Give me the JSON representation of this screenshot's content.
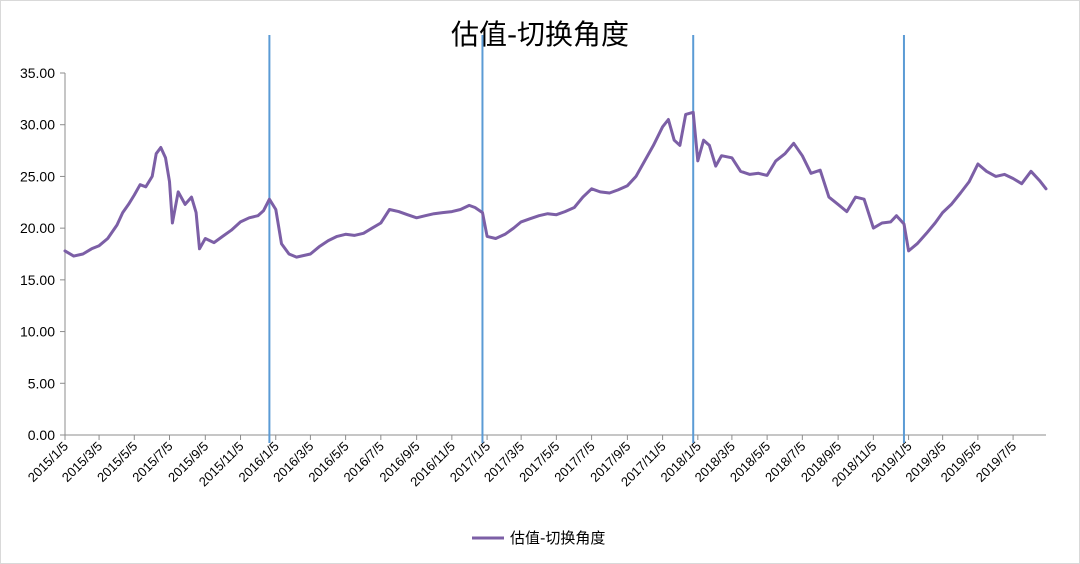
{
  "chart_data": {
    "type": "line",
    "title": "估值-切换角度",
    "xlabel": "",
    "ylabel": "",
    "ylim": [
      0,
      35
    ],
    "y_ticks": [
      "0.00",
      "5.00",
      "10.00",
      "15.00",
      "20.00",
      "25.00",
      "30.00",
      "35.00"
    ],
    "x_tick_labels": [
      "2015/1/5",
      "2015/3/5",
      "2015/5/5",
      "2015/7/5",
      "2015/9/5",
      "2015/11/5",
      "2016/1/5",
      "2016/3/5",
      "2016/5/5",
      "2016/7/5",
      "2016/9/5",
      "2016/11/5",
      "2017/1/5",
      "2017/3/5",
      "2017/5/5",
      "2017/7/5",
      "2017/9/5",
      "2017/11/5",
      "2018/1/5",
      "2018/3/5",
      "2018/5/5",
      "2018/7/5",
      "2018/9/5",
      "2018/11/5",
      "2019/1/5",
      "2019/3/5",
      "2019/5/5",
      "2019/7/5"
    ],
    "x_range": [
      "2015/1/5",
      "2019/8/31"
    ],
    "grid": false,
    "legend_position": "bottom",
    "series_color": "#7c5fa6",
    "vline_color": "#5b9bd5",
    "vertical_lines": [
      "2015/12/25",
      "2016/12/28",
      "2017/12/28",
      "2018/12/28"
    ],
    "series": [
      {
        "name": "估值-切换角度",
        "x": [
          "2015/1/5",
          "2015/1/20",
          "2015/2/5",
          "2015/2/20",
          "2015/3/5",
          "2015/3/20",
          "2015/4/5",
          "2015/4/15",
          "2015/4/25",
          "2015/5/5",
          "2015/5/15",
          "2015/5/25",
          "2015/6/5",
          "2015/6/12",
          "2015/6/20",
          "2015/6/28",
          "2015/7/5",
          "2015/7/10",
          "2015/7/20",
          "2015/8/1",
          "2015/8/12",
          "2015/8/20",
          "2015/8/26",
          "2015/9/5",
          "2015/9/20",
          "2015/10/5",
          "2015/10/20",
          "2015/11/5",
          "2015/11/20",
          "2015/12/5",
          "2015/12/15",
          "2015/12/25",
          "2016/1/5",
          "2016/1/15",
          "2016/1/28",
          "2016/2/10",
          "2016/3/5",
          "2016/3/20",
          "2016/4/5",
          "2016/4/20",
          "2016/5/5",
          "2016/5/20",
          "2016/6/5",
          "2016/6/20",
          "2016/7/5",
          "2016/7/20",
          "2016/8/5",
          "2016/8/20",
          "2016/9/5",
          "2016/9/20",
          "2016/10/5",
          "2016/10/20",
          "2016/11/5",
          "2016/11/20",
          "2016/12/5",
          "2016/12/15",
          "2016/12/28",
          "2017/1/5",
          "2017/1/20",
          "2017/2/5",
          "2017/2/20",
          "2017/3/5",
          "2017/3/20",
          "2017/4/5",
          "2017/4/20",
          "2017/5/5",
          "2017/5/20",
          "2017/6/5",
          "2017/6/20",
          "2017/7/5",
          "2017/7/20",
          "2017/8/5",
          "2017/8/20",
          "2017/9/5",
          "2017/9/20",
          "2017/10/5",
          "2017/10/20",
          "2017/11/5",
          "2017/11/15",
          "2017/11/25",
          "2017/12/5",
          "2017/12/15",
          "2017/12/28",
          "2018/1/5",
          "2018/1/15",
          "2018/1/25",
          "2018/2/5",
          "2018/2/15",
          "2018/3/5",
          "2018/3/20",
          "2018/4/5",
          "2018/4/20",
          "2018/5/5",
          "2018/5/20",
          "2018/6/5",
          "2018/6/20",
          "2018/7/5",
          "2018/7/20",
          "2018/8/5",
          "2018/8/20",
          "2018/9/5",
          "2018/9/20",
          "2018/10/5",
          "2018/10/20",
          "2018/11/5",
          "2018/11/20",
          "2018/12/5",
          "2018/12/15",
          "2018/12/28",
          "2019/1/5",
          "2019/1/20",
          "2019/2/5",
          "2019/2/20",
          "2019/3/5",
          "2019/3/20",
          "2019/4/5",
          "2019/4/20",
          "2019/5/5",
          "2019/5/20",
          "2019/6/5",
          "2019/6/20",
          "2019/7/5",
          "2019/7/20",
          "2019/8/5",
          "2019/8/20",
          "2019/8/31"
        ],
        "values": [
          17.8,
          17.3,
          17.5,
          18.0,
          18.3,
          19.0,
          20.3,
          21.5,
          22.3,
          23.2,
          24.2,
          24.0,
          25.0,
          27.2,
          27.8,
          26.8,
          24.5,
          20.5,
          23.5,
          22.3,
          23.0,
          21.5,
          18.0,
          19.0,
          18.6,
          19.2,
          19.8,
          20.6,
          21.0,
          21.2,
          21.7,
          22.8,
          21.8,
          18.5,
          17.5,
          17.2,
          17.5,
          18.2,
          18.8,
          19.2,
          19.4,
          19.3,
          19.5,
          20.0,
          20.5,
          21.8,
          21.6,
          21.3,
          21.0,
          21.2,
          21.4,
          21.5,
          21.6,
          21.8,
          22.2,
          22.0,
          21.5,
          19.2,
          19.0,
          19.4,
          20.0,
          20.6,
          20.9,
          21.2,
          21.4,
          21.3,
          21.6,
          22.0,
          23.0,
          23.8,
          23.5,
          23.4,
          23.7,
          24.1,
          25.0,
          26.5,
          28.0,
          29.8,
          30.5,
          28.5,
          28.0,
          31.0,
          31.2,
          26.5,
          28.5,
          28.0,
          26.0,
          27.0,
          26.8,
          25.5,
          25.2,
          25.3,
          25.1,
          26.5,
          27.2,
          28.2,
          27.0,
          25.3,
          25.6,
          23.0,
          22.3,
          21.6,
          23.0,
          22.8,
          20.0,
          20.5,
          20.6,
          21.2,
          20.4,
          17.8,
          18.5,
          19.5,
          20.5,
          21.5,
          22.3,
          23.4,
          24.5,
          26.2,
          25.5,
          25.0,
          25.2,
          24.8,
          24.3,
          25.5,
          24.6,
          23.8
        ]
      }
    ]
  },
  "legend": {
    "items": [
      {
        "label": "估值-切换角度",
        "color": "#7c5fa6"
      }
    ]
  }
}
